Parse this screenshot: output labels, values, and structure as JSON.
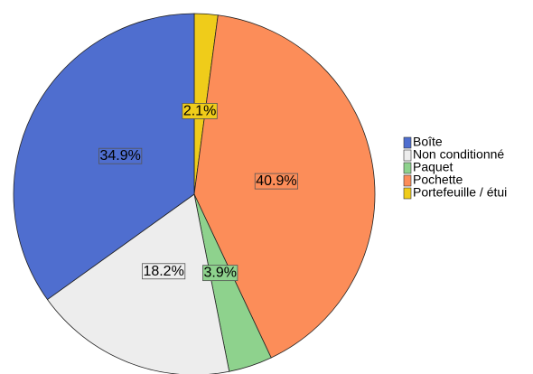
{
  "chart_data": {
    "type": "pie",
    "categories": [
      "Boîte",
      "Non conditionné",
      "Paquet",
      "Pochette",
      "Portefeuille / étui"
    ],
    "values": [
      34.9,
      18.2,
      3.9,
      40.9,
      2.1
    ],
    "value_labels": [
      "34.9%",
      "18.2%",
      "3.9%",
      "40.9%",
      "2.1%"
    ],
    "colors": [
      "#4f6ecf",
      "#ededed",
      "#8ed28d",
      "#fc8d59",
      "#efcc1a"
    ],
    "legend": "right"
  }
}
